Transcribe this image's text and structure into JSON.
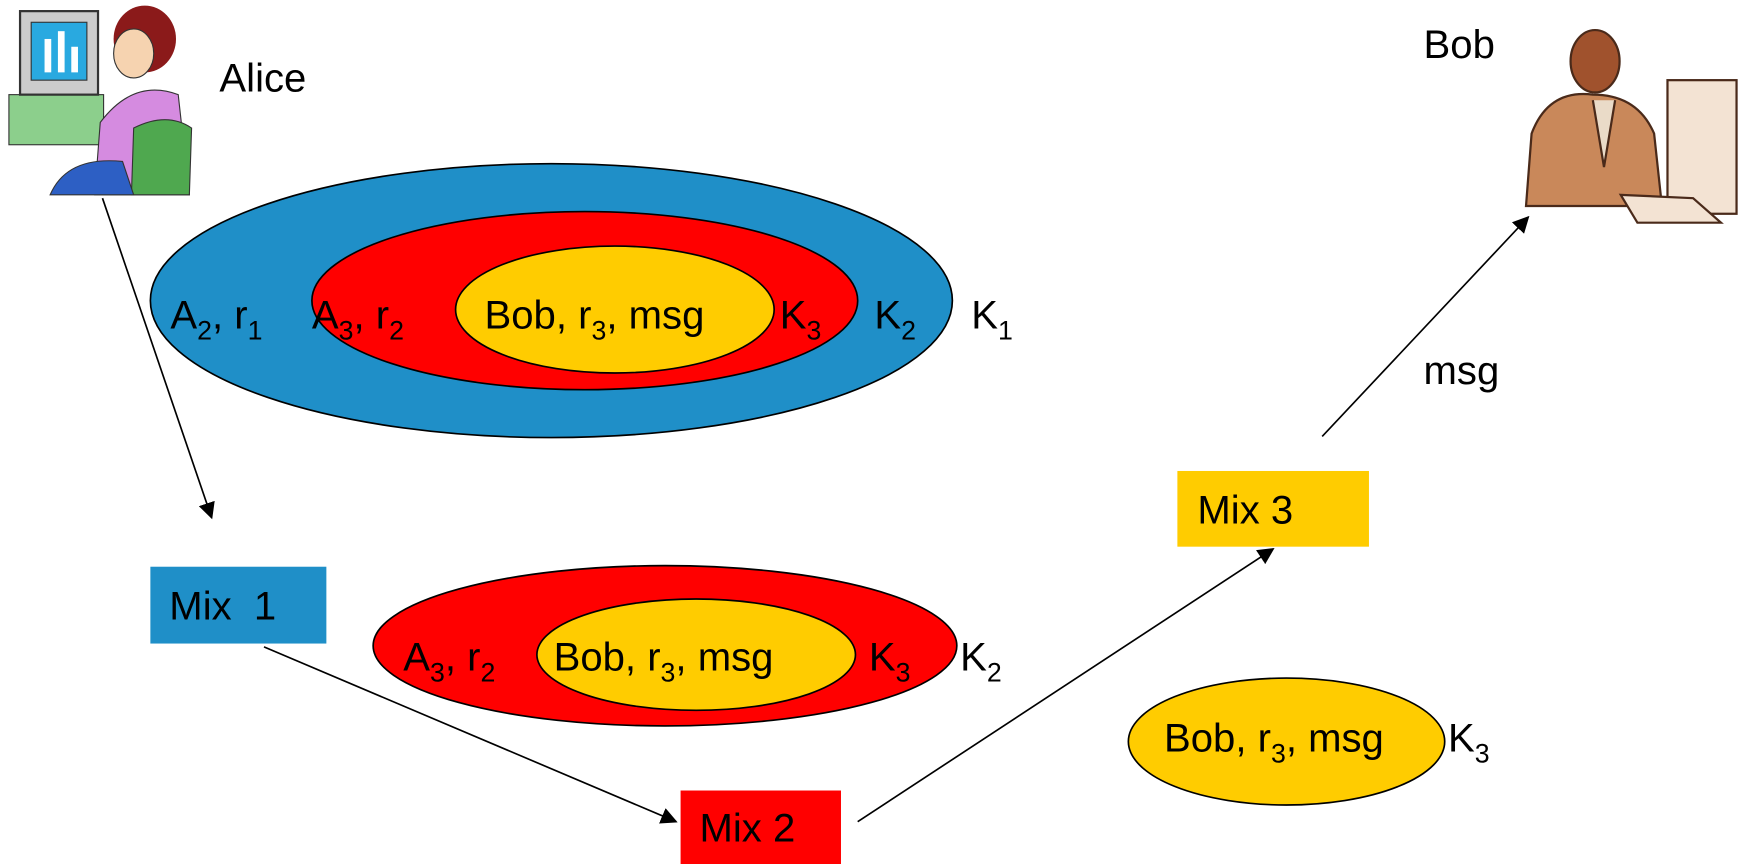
{
  "actors": {
    "alice": {
      "label": "Alice"
    },
    "bob": {
      "label": "Bob"
    }
  },
  "mixes": [
    "Mix  1",
    "Mix 2",
    "Mix 3"
  ],
  "edge_label": "msg",
  "onions": [
    {
      "layers": [
        {
          "label": [
            {
              "text": "A"
            },
            {
              "sub": "2"
            },
            {
              "text": ", r"
            },
            {
              "sub": "1"
            }
          ],
          "key": [
            {
              "text": "K"
            },
            {
              "sub": "1"
            }
          ]
        },
        {
          "label": [
            {
              "text": "A"
            },
            {
              "sub": "3"
            },
            {
              "text": ", r"
            },
            {
              "sub": "2"
            }
          ],
          "key": [
            {
              "text": "K"
            },
            {
              "sub": "2"
            }
          ]
        },
        {
          "label": [
            {
              "text": "Bob, r"
            },
            {
              "sub": "3"
            },
            {
              "text": ", msg"
            }
          ],
          "key": [
            {
              "text": "K"
            },
            {
              "sub": "3"
            }
          ]
        }
      ]
    },
    {
      "layers": [
        {
          "label": [
            {
              "text": "A"
            },
            {
              "sub": "3"
            },
            {
              "text": ", r"
            },
            {
              "sub": "2"
            }
          ],
          "key": [
            {
              "text": "K"
            },
            {
              "sub": "2"
            }
          ]
        },
        {
          "label": [
            {
              "text": "Bob, r"
            },
            {
              "sub": "3"
            },
            {
              "text": ", msg"
            }
          ],
          "key": [
            {
              "text": "K"
            },
            {
              "sub": "3"
            }
          ]
        }
      ]
    },
    {
      "layers": [
        {
          "label": [
            {
              "text": "Bob, r"
            },
            {
              "sub": "3"
            },
            {
              "text": ", msg"
            }
          ],
          "key": [
            {
              "text": "K"
            },
            {
              "sub": "3"
            }
          ]
        }
      ]
    }
  ]
}
